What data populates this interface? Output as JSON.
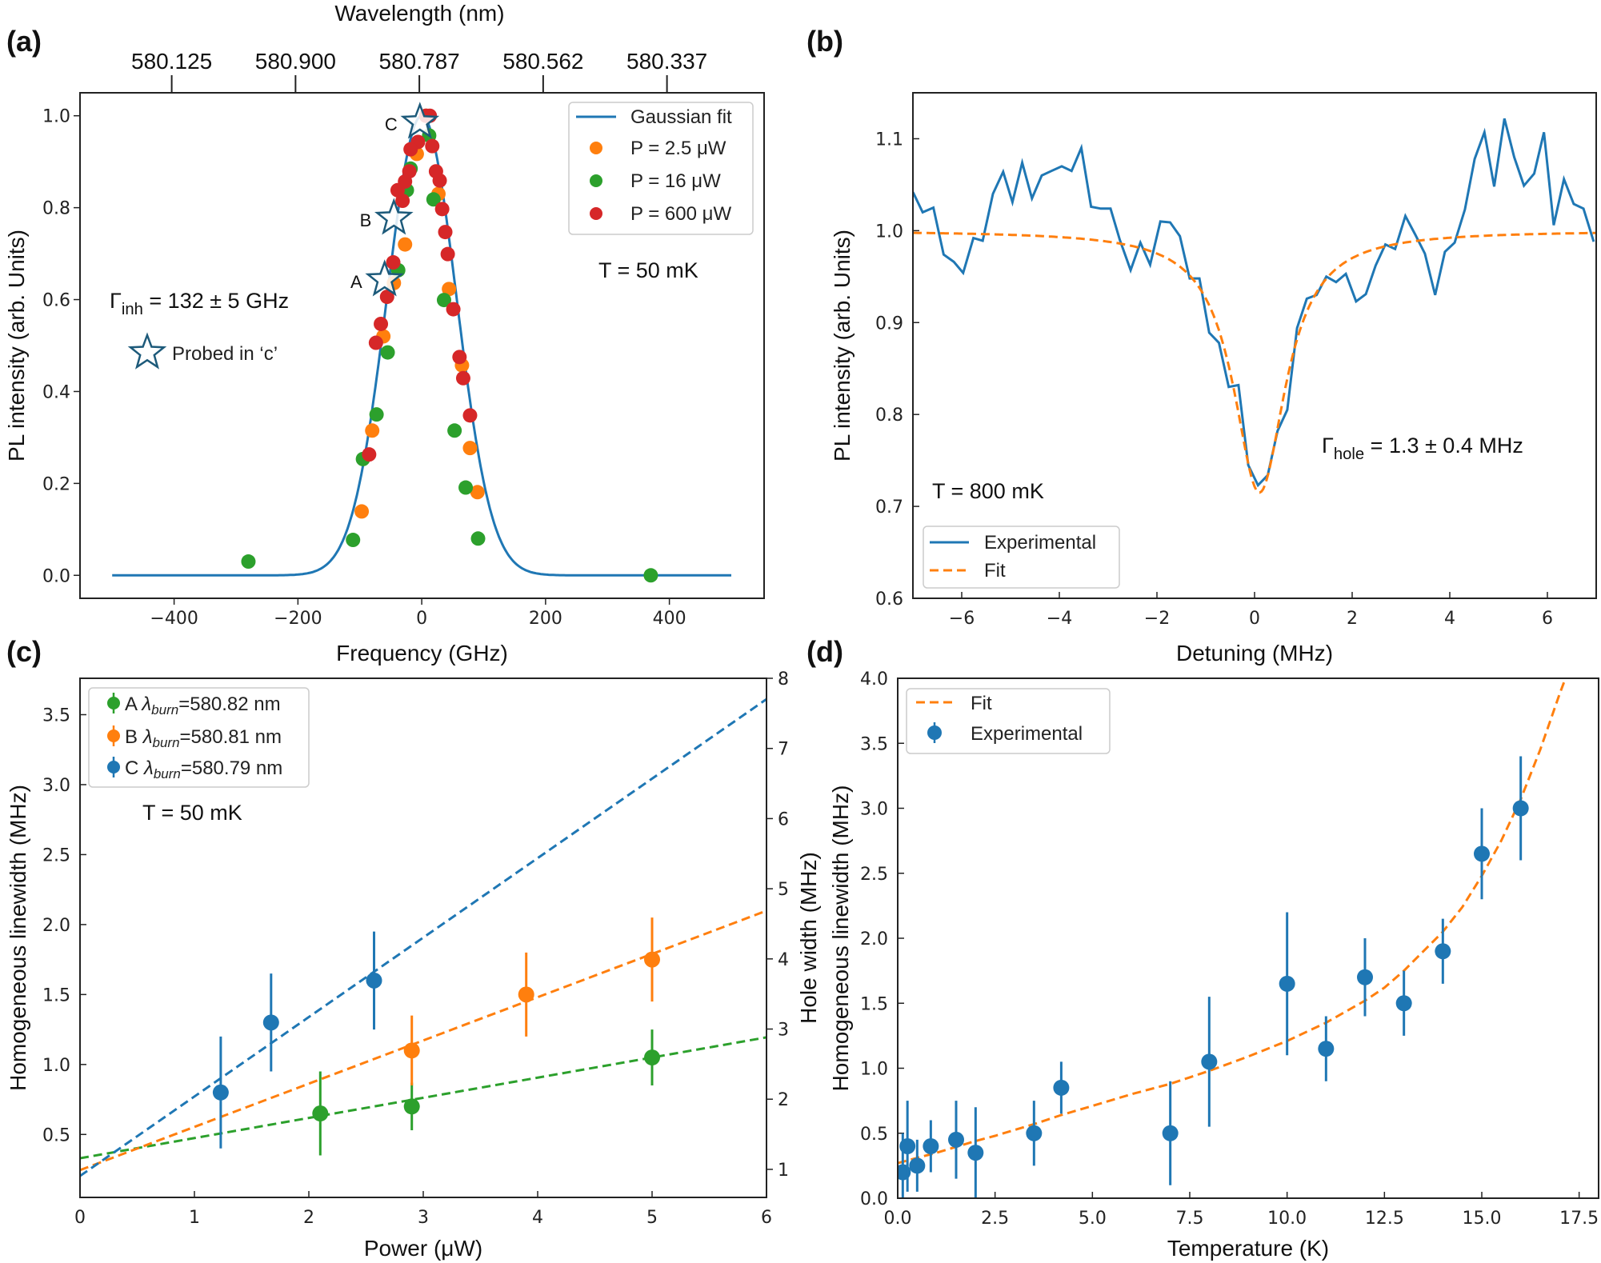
{
  "chart_data": [
    {
      "panel": "(a)",
      "type": "scatter",
      "xlabel": "Frequency (GHz)",
      "ylabel": "PL intensity (arb. Units)",
      "top_xlabel": "Wavelength (nm)",
      "xlim": [
        -552,
        553
      ],
      "ylim": [
        -0.05,
        1.05
      ],
      "xticks": [
        -400,
        -200,
        0,
        200,
        400
      ],
      "xtick_labels": [
        "−400",
        "−200",
        "0",
        "200",
        "400"
      ],
      "yticks": [
        0,
        0.2,
        0.4,
        0.6,
        0.8,
        1.0
      ],
      "ytick_labels": [
        "0.0",
        "0.2",
        "0.4",
        "0.6",
        "0.8",
        "1.0"
      ],
      "top_ticks": [
        -400,
        -200,
        0,
        200,
        400
      ],
      "top_tick_labels": [
        "580.125",
        "580.900",
        "580.787",
        "580.562",
        "580.337"
      ],
      "grid": false,
      "legend": {
        "position": "top-right"
      },
      "series": [
        {
          "name": "Gaussian fit",
          "kind": "fit",
          "model": "gaussian",
          "center": 0,
          "fwhm": 132,
          "amplitude": 1.0,
          "x_range": [
            -500,
            500
          ],
          "color": "#1f77b4"
        },
        {
          "name": "P = 2.5 μW",
          "kind": "points",
          "color": "#ff7f0e",
          "points": [
            [
              7,
              1.0
            ],
            [
              -8,
              0.917
            ],
            [
              27,
              0.83
            ],
            [
              -27,
              0.72
            ],
            [
              44,
              0.623
            ],
            [
              -45,
              0.636
            ],
            [
              -62,
              0.52
            ],
            [
              65,
              0.457
            ],
            [
              -80,
              0.315
            ],
            [
              78,
              0.277
            ],
            [
              -97,
              0.139
            ],
            [
              90,
              0.181
            ]
          ]
        },
        {
          "name": "P = 16 μW",
          "kind": "points",
          "color": "#2ca02c",
          "points": [
            [
              -280,
              0.03
            ],
            [
              -111,
              0.077
            ],
            [
              -95,
              0.253
            ],
            [
              -73,
              0.35
            ],
            [
              -55,
              0.485
            ],
            [
              -38,
              0.664
            ],
            [
              -24,
              0.838
            ],
            [
              -18,
              0.885
            ],
            [
              12,
              0.957
            ],
            [
              19,
              0.818
            ],
            [
              36,
              0.599
            ],
            [
              53,
              0.315
            ],
            [
              71,
              0.191
            ],
            [
              91,
              0.08
            ],
            [
              370,
              0.0
            ]
          ]
        },
        {
          "name": "P = 600 μW",
          "kind": "points",
          "color": "#d62728",
          "points": [
            [
              13,
              1.0
            ],
            [
              7,
              1.0
            ],
            [
              -6,
              0.943
            ],
            [
              -18,
              0.927
            ],
            [
              17,
              0.934
            ],
            [
              -20,
              0.879
            ],
            [
              -27,
              0.857
            ],
            [
              -39,
              0.838
            ],
            [
              -31,
              0.815
            ],
            [
              23,
              0.879
            ],
            [
              29,
              0.859
            ],
            [
              33,
              0.797
            ],
            [
              38,
              0.747
            ],
            [
              42,
              0.699
            ],
            [
              -46,
              0.681
            ],
            [
              -56,
              0.606
            ],
            [
              -66,
              0.547
            ],
            [
              -74,
              0.506
            ],
            [
              51,
              0.579
            ],
            [
              61,
              0.475
            ],
            [
              67,
              0.429
            ],
            [
              78,
              0.348
            ],
            [
              -85,
              0.263
            ]
          ]
        }
      ],
      "probed_points": [
        {
          "label": "A",
          "x": -60,
          "y": 0.643
        },
        {
          "label": "B",
          "x": -45,
          "y": 0.777
        },
        {
          "label": "C",
          "x": -3,
          "y": 0.986
        }
      ],
      "star_color": "#1d5a7a",
      "annotations": {
        "gamma": {
          "symbol": "Γ",
          "sub": "inh",
          "text": " = 132 ± 5 GHz"
        },
        "temperature": "T = 50 mK",
        "probed_legend": "Probed in ‘c’"
      }
    },
    {
      "panel": "(b)",
      "type": "line",
      "xlabel": "Detuning (MHz)",
      "ylabel": "PL intensity (arb. Units)",
      "xlim": [
        -7,
        7
      ],
      "ylim": [
        0.6,
        1.15
      ],
      "xticks": [
        -6,
        -4,
        -2,
        0,
        2,
        4,
        6
      ],
      "xtick_labels": [
        "−6",
        "−4",
        "−2",
        "0",
        "2",
        "4",
        "6"
      ],
      "yticks": [
        0.6,
        0.7,
        0.8,
        0.9,
        1.0,
        1.1
      ],
      "ytick_labels": [
        "0.6",
        "0.7",
        "0.8",
        "0.9",
        "1.0",
        "1.1"
      ],
      "grid": false,
      "legend": {
        "position": "bottom-left"
      },
      "series": [
        {
          "name": "Experimental",
          "kind": "line",
          "color": "#1f77b4",
          "x": [
            -7.0,
            -6.8,
            -6.58,
            -6.37,
            -6.16,
            -5.97,
            -5.76,
            -5.57,
            -5.36,
            -5.15,
            -4.96,
            -4.76,
            -4.56,
            -4.36,
            -4.16,
            -3.95,
            -3.75,
            -3.55,
            -3.35,
            -3.15,
            -2.95,
            -2.76,
            -2.54,
            -2.34,
            -2.14,
            -1.93,
            -1.73,
            -1.53,
            -1.33,
            -1.13,
            -0.93,
            -0.73,
            -0.53,
            -0.33,
            -0.13,
            0.07,
            0.27,
            0.47,
            0.67,
            0.87,
            1.07,
            1.27,
            1.47,
            1.67,
            1.87,
            2.08,
            2.28,
            2.48,
            2.68,
            2.88,
            3.09,
            3.29,
            3.49,
            3.7,
            3.9,
            4.1,
            4.31,
            4.51,
            4.71,
            4.91,
            5.12,
            5.32,
            5.52,
            5.73,
            5.93,
            6.13,
            6.34,
            6.54,
            6.74,
            6.95
          ],
          "y": [
            1.042,
            1.02,
            1.025,
            0.974,
            0.966,
            0.954,
            0.992,
            0.989,
            1.04,
            1.064,
            1.031,
            1.074,
            1.035,
            1.06,
            1.065,
            1.07,
            1.065,
            1.09,
            1.026,
            1.024,
            1.024,
            0.99,
            0.957,
            0.987,
            0.963,
            1.01,
            1.009,
            0.994,
            0.948,
            0.948,
            0.889,
            0.878,
            0.83,
            0.832,
            0.745,
            0.723,
            0.734,
            0.782,
            0.805,
            0.894,
            0.926,
            0.93,
            0.95,
            0.944,
            0.953,
            0.923,
            0.931,
            0.962,
            0.985,
            0.98,
            1.016,
            0.996,
            0.975,
            0.93,
            0.977,
            0.987,
            1.023,
            1.078,
            1.107,
            1.048,
            1.122,
            1.08,
            1.049,
            1.062,
            1.107,
            1.006,
            1.056,
            1.029,
            1.024,
            0.988
          ]
        },
        {
          "name": "Fit",
          "kind": "fit",
          "model": "lorentzian",
          "center": 0.1,
          "fwhm": 1.3,
          "depth": 0.285,
          "baseline": 1.0,
          "x_range": [
            -7,
            7
          ],
          "color": "#ff7f0e",
          "dashed": true
        }
      ],
      "annotations": {
        "gamma": {
          "symbol": "Γ",
          "sub": "hole",
          "text": " = 1.3 ± 0.4 MHz"
        },
        "temperature": "T = 800 mK"
      }
    },
    {
      "panel": "(c)",
      "type": "scatter",
      "xlabel": "Power (μW)",
      "ylabel": "Homogeneous linewidth (MHz)",
      "ylabel_right": "Hole width (MHz)",
      "xlim": [
        0,
        6
      ],
      "ylim": [
        0.05,
        3.76
      ],
      "ylim_right": [
        0.6,
        8
      ],
      "xticks": [
        0,
        1,
        2,
        3,
        4,
        5,
        6
      ],
      "xtick_labels": [
        "0",
        "1",
        "2",
        "3",
        "4",
        "5",
        "6"
      ],
      "yticks": [
        0.5,
        1.0,
        1.5,
        2.0,
        2.5,
        3.0,
        3.5
      ],
      "ytick_labels": [
        "0.5",
        "1.0",
        "1.5",
        "2.0",
        "2.5",
        "3.0",
        "3.5"
      ],
      "yticks_right": [
        1,
        2,
        3,
        4,
        5,
        6,
        7,
        8
      ],
      "ytick_labels_right": [
        "1",
        "2",
        "3",
        "4",
        "5",
        "6",
        "7",
        "8"
      ],
      "grid": false,
      "legend": {
        "position": "top-left"
      },
      "series": [
        {
          "name_parts": {
            "prefix": "A ",
            "symbol": "λ",
            "sub": "burn",
            "suffix": "=580.82 nm"
          },
          "color": "#2ca02c",
          "points": [
            [
              2.1,
              0.65,
              0.3
            ],
            [
              2.9,
              0.7,
              0.17
            ],
            [
              5.0,
              1.05,
              0.2
            ]
          ],
          "fit": {
            "intercept": 0.33,
            "slope": 0.144
          }
        },
        {
          "name_parts": {
            "prefix": "B ",
            "symbol": "λ",
            "sub": "burn",
            "suffix": "=580.81 nm"
          },
          "color": "#ff7f0e",
          "points": [
            [
              2.9,
              1.1,
              0.25
            ],
            [
              3.9,
              1.5,
              0.3
            ],
            [
              5.0,
              1.75,
              0.3
            ]
          ],
          "fit": {
            "intercept": 0.245,
            "slope": 0.309
          }
        },
        {
          "name_parts": {
            "prefix": "C ",
            "symbol": "λ",
            "sub": "burn",
            "suffix": "=580.79 nm"
          },
          "color": "#1f77b4",
          "points": [
            [
              1.23,
              0.8,
              0.4
            ],
            [
              1.67,
              1.3,
              0.35
            ],
            [
              2.57,
              1.6,
              0.35
            ]
          ],
          "fit": {
            "intercept": 0.203,
            "slope": 0.568
          }
        }
      ],
      "annotations": {
        "temperature": "T = 50 mK"
      }
    },
    {
      "panel": "(d)",
      "type": "scatter",
      "xlabel": "Temperature (K)",
      "ylabel": "Homogeneous linewidth (MHz)",
      "xlim": [
        0,
        18.0
      ],
      "ylim": [
        0,
        4.0
      ],
      "xticks": [
        0,
        2.5,
        5,
        7.5,
        10,
        12.5,
        15,
        17.5
      ],
      "xtick_labels": [
        "0.0",
        "2.5",
        "5.0",
        "7.5",
        "10.0",
        "12.5",
        "15.0",
        "17.5"
      ],
      "yticks": [
        0,
        0.5,
        1.0,
        1.5,
        2.0,
        2.5,
        3.0,
        3.5,
        4.0
      ],
      "ytick_labels": [
        "0.0",
        "0.5",
        "1.0",
        "1.5",
        "2.0",
        "2.5",
        "3.0",
        "3.5",
        "4.0"
      ],
      "grid": false,
      "legend": {
        "position": "top-left"
      },
      "series": [
        {
          "name": "Fit",
          "kind": "fit",
          "color": "#ff7f0e",
          "dashed": true,
          "x": [
            0,
            1,
            2,
            2.5,
            3.5,
            4.2,
            5,
            6,
            7,
            7.5,
            8,
            9,
            10,
            11,
            12,
            12.5,
            13,
            14,
            14.5,
            15,
            15.5,
            16,
            16.5,
            17,
            17.15
          ],
          "y": [
            0.27,
            0.35,
            0.44,
            0.48,
            0.57,
            0.64,
            0.71,
            0.8,
            0.88,
            0.93,
            0.98,
            1.09,
            1.21,
            1.35,
            1.52,
            1.62,
            1.75,
            2.05,
            2.24,
            2.48,
            2.75,
            3.07,
            3.45,
            3.88,
            4.0
          ]
        },
        {
          "name": "Experimental",
          "kind": "errorbar",
          "color": "#1f77b4",
          "points": [
            [
              0.13,
              0.2,
              0.3
            ],
            [
              0.25,
              0.4,
              0.35
            ],
            [
              0.5,
              0.25,
              0.2
            ],
            [
              0.85,
              0.4,
              0.2
            ],
            [
              1.5,
              0.45,
              0.3
            ],
            [
              2.0,
              0.35,
              0.35
            ],
            [
              3.5,
              0.5,
              0.25
            ],
            [
              4.2,
              0.85,
              0.2
            ],
            [
              7.0,
              0.5,
              0.4
            ],
            [
              8.0,
              1.05,
              0.5
            ],
            [
              10.0,
              1.65,
              0.55
            ],
            [
              11.0,
              1.15,
              0.25
            ],
            [
              12.0,
              1.7,
              0.3
            ],
            [
              13.0,
              1.5,
              0.25
            ],
            [
              14.0,
              1.9,
              0.25
            ],
            [
              15.0,
              2.65,
              0.35
            ],
            [
              16.0,
              3.0,
              0.4
            ]
          ]
        }
      ]
    }
  ]
}
